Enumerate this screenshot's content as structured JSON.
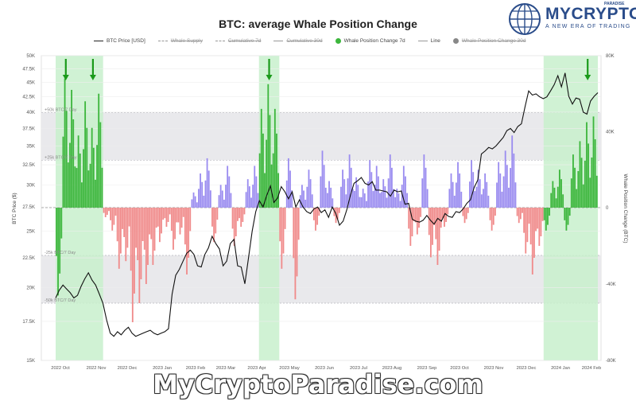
{
  "header": {
    "title": "BTC: average Whale Position Change"
  },
  "legend": [
    {
      "label": "BTC Price [USD]",
      "style": "line",
      "color": "#222222",
      "strike": false
    },
    {
      "label": "Whale Supply",
      "style": "dash",
      "color": "#999999",
      "strike": true
    },
    {
      "label": "Cumulative 7d",
      "style": "dash",
      "color": "#999999",
      "strike": true
    },
    {
      "label": "Cumulative 30d",
      "style": "line",
      "color": "#999999",
      "strike": true
    },
    {
      "label": "Whale Position Change 7d",
      "style": "dot",
      "color": "#3cb63c",
      "strike": false
    },
    {
      "label": "Line",
      "style": "line",
      "color": "#999999",
      "strike": false
    },
    {
      "label": "Whale Position Change 30d",
      "style": "dot",
      "color": "#888888",
      "strike": true
    }
  ],
  "brand": {
    "name": "MYCRYPTO",
    "tagline": "A NEW ERA OF TRADING",
    "sub": "PARADISE"
  },
  "watermark": "MyCryptoParadise.com",
  "colors": {
    "positive_bar": "#9a8cf0",
    "negative_bar": "#f08a8a",
    "whale_bar": "#3cb63c",
    "highlight": "#c8f0cc",
    "band": "#e9e9ec",
    "price_line": "#111111",
    "arrow": "#1a9a1a"
  },
  "chart_data": {
    "type": "bar",
    "title": "BTC: average Whale Position Change",
    "ylabel": "BTC Price ($)",
    "y2label": "Whale Position Change (BTC)",
    "y_scale": "log",
    "y_ticks": [
      {
        "value": 15000,
        "label": "15K"
      },
      {
        "value": 17500,
        "label": "17.5K"
      },
      {
        "value": 20000,
        "label": "20K"
      },
      {
        "value": 22500,
        "label": "22.5K"
      },
      {
        "value": 25000,
        "label": "25K"
      },
      {
        "value": 27500,
        "label": "27.5K"
      },
      {
        "value": 30000,
        "label": "30K"
      },
      {
        "value": 32500,
        "label": "32.5K"
      },
      {
        "value": 35000,
        "label": "35K"
      },
      {
        "value": 37500,
        "label": "37.5K"
      },
      {
        "value": 40000,
        "label": "40K"
      },
      {
        "value": 42500,
        "label": "42.5K"
      },
      {
        "value": 45000,
        "label": "45K"
      },
      {
        "value": 47500,
        "label": "47.5K"
      },
      {
        "value": 50000,
        "label": "50K"
      }
    ],
    "ylim": [
      15000,
      50000
    ],
    "y2lim": [
      -80000,
      80000
    ],
    "y2_ticks": [
      {
        "value": 80000,
        "label": "80K"
      },
      {
        "value": 40000,
        "label": "40K"
      },
      {
        "value": 0,
        "label": "0"
      },
      {
        "value": -40000,
        "label": "-40K"
      },
      {
        "value": -80000,
        "label": "-80K"
      }
    ],
    "x_ticks": [
      "2022 Oct",
      "2022 Nov",
      "2022 Dec",
      "2023 Jan",
      "2023 Feb",
      "2023 Mar",
      "2023 Apr",
      "2023 May",
      "2023 Jun",
      "2023 Jul",
      "2023 Aug",
      "2023 Sep",
      "2023 Oct",
      "2023 Nov",
      "2023 Dec",
      "2024 Jan",
      "2024 Feb"
    ],
    "bands": [
      {
        "from": 25000,
        "to": 50000,
        "top_label": "+50k BTC/7 Day",
        "bottom_label": "+25k BTC/7 Day"
      },
      {
        "from": -25000,
        "to": -50000,
        "top_label": "-25k BTC/7 Day",
        "bottom_label": "-50k BTC/7 Day"
      }
    ],
    "highlights": [
      {
        "from_week": 0,
        "to_week": 6
      },
      {
        "from_week": 30,
        "to_week": 32
      },
      {
        "from_week": 72,
        "to_week": 79
      }
    ],
    "arrows_at_week": [
      1,
      5,
      31,
      78
    ],
    "series": [
      {
        "name": "Whale Position Change 7d",
        "unit": "BTC",
        "values": [
          -46000,
          68000,
          62000,
          38000,
          56000,
          42000,
          60000,
          -5000,
          -12000,
          -32000,
          -28000,
          -60000,
          -50000,
          -40000,
          -30000,
          -18000,
          -10000,
          -22000,
          -14000,
          -35000,
          8000,
          18000,
          26000,
          -18000,
          12000,
          22000,
          -20000,
          -10000,
          15000,
          22000,
          52000,
          65000,
          52000,
          -32000,
          26000,
          -48000,
          12000,
          20000,
          -12000,
          30000,
          14000,
          -8000,
          20000,
          28000,
          16000,
          10000,
          25000,
          22000,
          15000,
          28000,
          10000,
          22000,
          -20000,
          -14000,
          28000,
          -26000,
          -30000,
          -10000,
          18000,
          24000,
          -8000,
          25000,
          20000,
          18000,
          -12000,
          24000,
          30000,
          38000,
          -8000,
          -24000,
          -35000,
          -20000,
          -12000,
          14000,
          20000,
          -12000,
          28000,
          35000,
          45000,
          48000
        ],
        "color_rule": "green in highlighted weeks, purple when positive, red when negative"
      },
      {
        "name": "BTC Price [USD]",
        "x_step": "half-week",
        "values": [
          19200,
          19800,
          20200,
          19900,
          19600,
          19200,
          19400,
          20100,
          20700,
          21200,
          20600,
          20200,
          19500,
          18800,
          17600,
          16700,
          16500,
          16800,
          16600,
          16900,
          17100,
          16700,
          16500,
          16600,
          16700,
          16800,
          16900,
          16700,
          16600,
          16700,
          16800,
          17000,
          19500,
          21000,
          21500,
          22200,
          22900,
          23200,
          22800,
          21800,
          21700,
          22800,
          23400,
          24500,
          23800,
          23300,
          21800,
          22200,
          23800,
          24200,
          21800,
          21700,
          20300,
          22500,
          25000,
          27000,
          28200,
          27500,
          28800,
          29900,
          28000,
          28500,
          29800,
          29200,
          28400,
          29200,
          27500,
          28300,
          27500,
          27000,
          26800,
          27300,
          27500,
          26900,
          27200,
          26400,
          27500,
          26800,
          25600,
          26000,
          27200,
          28800,
          30200,
          30500,
          30900,
          30200,
          30000,
          30400,
          29400,
          29400,
          29300,
          29200,
          28700,
          29400,
          29200,
          29300,
          27800,
          27900,
          26200,
          26000,
          25900,
          26100,
          26600,
          26100,
          25700,
          26300,
          26000,
          26800,
          26500,
          26400,
          27000,
          26900,
          27300,
          27900,
          28300,
          29700,
          30600,
          33900,
          34300,
          34800,
          34600,
          35000,
          35600,
          36200,
          37200,
          37500,
          36900,
          37800,
          38200,
          40900,
          43500,
          42800,
          43000,
          42500,
          42200,
          42500,
          43500,
          44600,
          46200,
          44200,
          46700,
          42600,
          41300,
          42300,
          42100,
          40000,
          39700,
          41800,
          42600,
          43200
        ]
      }
    ]
  }
}
